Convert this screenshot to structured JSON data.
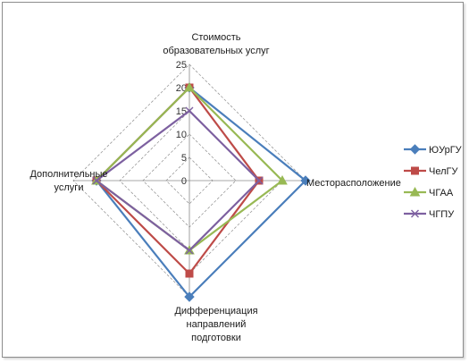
{
  "chart_data": {
    "type": "radar",
    "title": "",
    "axes": [
      {
        "label_lines": [
          "Стоимость",
          "образовательных услуг"
        ]
      },
      {
        "label_lines": [
          "Месторасположение"
        ]
      },
      {
        "label_lines": [
          "Дифференциация",
          "направлений",
          "подготовки"
        ]
      },
      {
        "label_lines": [
          "Дополнительные",
          "услуги"
        ]
      }
    ],
    "rmin": 0,
    "rmax": 25,
    "ticks": [
      "0",
      "5",
      "10",
      "15",
      "20",
      "25"
    ],
    "tick_values": [
      0,
      5,
      10,
      15,
      20,
      25
    ],
    "grid": true,
    "legend_position": "right",
    "series": [
      {
        "name": "ЮУрГУ",
        "color": "#4a7ebb",
        "marker": "diamond",
        "values": [
          20,
          25,
          25,
          20
        ]
      },
      {
        "name": "ЧелГУ",
        "color": "#be4b48",
        "marker": "square",
        "values": [
          20,
          15,
          20,
          20
        ]
      },
      {
        "name": "ЧГАА",
        "color": "#98b954",
        "marker": "triangle",
        "values": [
          20,
          20,
          15,
          20
        ]
      },
      {
        "name": "ЧГПУ",
        "color": "#7d60a0",
        "marker": "x",
        "values": [
          15,
          15,
          15,
          20
        ]
      }
    ]
  }
}
